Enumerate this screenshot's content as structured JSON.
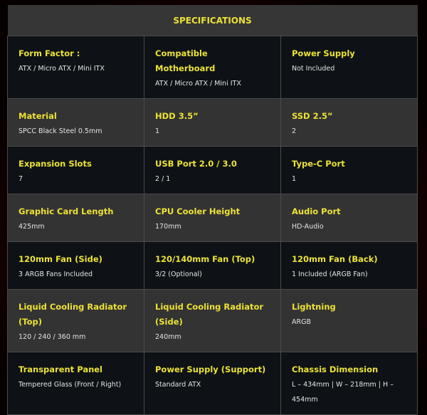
{
  "title": "SPECIFICATIONS",
  "colors": {
    "label": "#ece235",
    "value": "#e4e4e4",
    "row_dark": "#0e1216",
    "row_grey": "#333333"
  },
  "rows": [
    [
      {
        "label": "Form Factor :",
        "value": "ATX / Micro ATX / Mini ITX"
      },
      {
        "label": "Compatible Motherboard",
        "value": "ATX / Micro ATX / Mini ITX"
      },
      {
        "label": "Power Supply",
        "value": "Not Included"
      }
    ],
    [
      {
        "label": "Material",
        "value": "SPCC Black Steel 0.5mm"
      },
      {
        "label": "HDD 3.5”",
        "value": "1"
      },
      {
        "label": "SSD 2.5”",
        "value": "2"
      }
    ],
    [
      {
        "label": "Expansion Slots",
        "value": "7"
      },
      {
        "label": "USB Port 2.0 / 3.0",
        "value": "2 / 1"
      },
      {
        "label": "Type-C Port",
        "value": "1"
      }
    ],
    [
      {
        "label": "Graphic Card Length",
        "value": "425mm"
      },
      {
        "label": "CPU Cooler Height",
        "value": "170mm"
      },
      {
        "label": "Audio Port",
        "value": "HD-Audio"
      }
    ],
    [
      {
        "label": "120mm Fan (Side)",
        "value": "3 ARGB Fans Included"
      },
      {
        "label": "120/140mm Fan (Top)",
        "value": "3/2 (Optional)"
      },
      {
        "label": "120mm Fan (Back)",
        "value": "1 Included (ARGB Fan)"
      }
    ],
    [
      {
        "label": "Liquid Cooling Radiator (Top)",
        "value": "120 / 240 / 360 mm"
      },
      {
        "label": "Liquid Cooling Radiator (Side)",
        "value": "240mm"
      },
      {
        "label": "Lightning",
        "value": "ARGB"
      }
    ],
    [
      {
        "label": "Transparent Panel",
        "value": "Tempered Glass (Front / Right)"
      },
      {
        "label": "Power Supply (Support)",
        "value": "Standard ATX"
      },
      {
        "label": "Chassis Dimension",
        "value": "L – 434mm | W – 218mm | H – 454mm"
      }
    ]
  ]
}
